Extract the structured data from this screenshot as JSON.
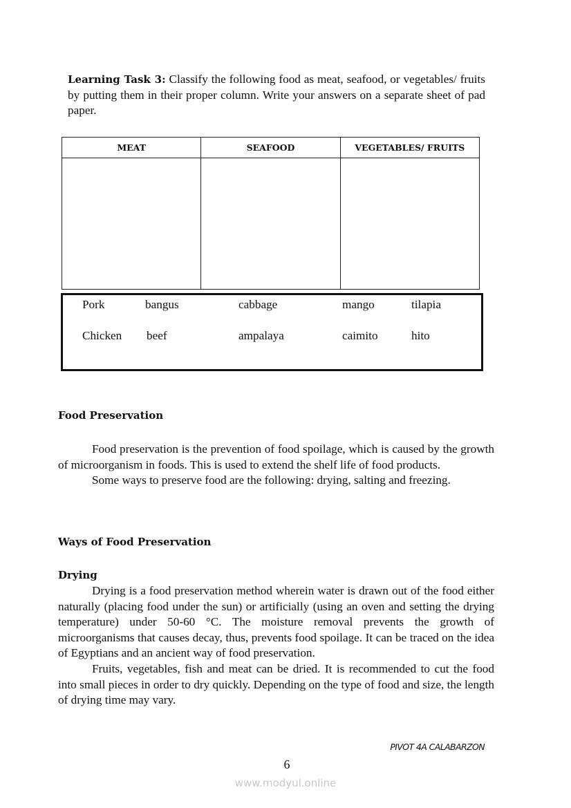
{
  "task": {
    "label": "Learning Task 3:",
    "text": " Classify the following food as meat, seafood, or vegetables/ fruits by putting them in their proper column. Write your answers on a separate sheet of pad paper."
  },
  "table": {
    "headers": [
      "MEAT",
      "SEAFOOD",
      "VEGETABLES/ FRUITS"
    ]
  },
  "words": [
    [
      "Pork",
      "bangus",
      "cabbage",
      "mango",
      "tilapia"
    ],
    [
      "Chicken",
      "beef",
      "ampalaya",
      "caimito",
      "hito"
    ]
  ],
  "food_preservation": {
    "heading": "Food Preservation",
    "paragraphs": [
      "Food preservation is the prevention of food spoilage, which is caused by the growth of microorganism in foods.  This is used to extend the shelf life of food products.",
      "Some ways to preserve food are the following: drying, salting and freezing."
    ]
  },
  "ways_heading": "Ways of Food Preservation",
  "drying": {
    "heading": "Drying",
    "paragraphs": [
      "Drying is a food preservation method wherein water is drawn out of the food either naturally (placing food under the sun) or artificially (using an oven and setting the drying temperature) under 50-60 °C. The moisture removal prevents the growth of microorganisms that causes decay, thus, prevents food spoilage.   It can be traced on the idea of Egyptians and an ancient way of food preservation.",
      "Fruits, vegetables, fish and meat can be dried. It is recommended to cut the food into small pieces in order to dry quickly.  Depending on the type of food and size, the length of drying time may vary."
    ]
  },
  "footer": {
    "label": "PIVOT 4A CALABARZON",
    "page": "6",
    "watermark": "www.modyul.online"
  }
}
